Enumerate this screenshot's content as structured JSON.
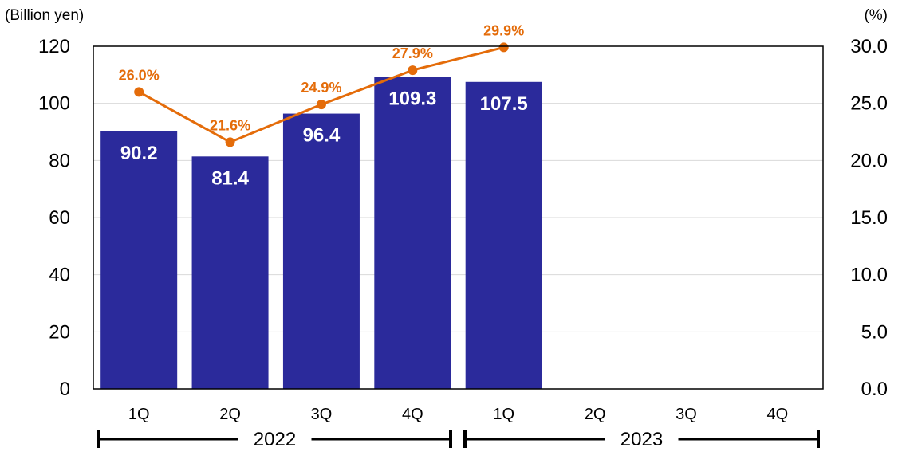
{
  "chart_data": {
    "type": "bar",
    "categories": [
      "1Q",
      "2Q",
      "3Q",
      "4Q",
      "1Q",
      "2Q",
      "3Q",
      "4Q"
    ],
    "groups": [
      {
        "label": "2022",
        "span": [
          0,
          3
        ]
      },
      {
        "label": "2023",
        "span": [
          4,
          7
        ]
      }
    ],
    "series": [
      {
        "type": "bar",
        "axis": "left",
        "values": [
          90.2,
          81.4,
          96.4,
          109.3,
          107.5,
          null,
          null,
          null
        ],
        "labels": [
          "90.2",
          "81.4",
          "96.4",
          "109.3",
          "107.5",
          null,
          null,
          null
        ]
      },
      {
        "type": "line",
        "axis": "right",
        "values": [
          26.0,
          21.6,
          24.9,
          27.9,
          29.9,
          null,
          null,
          null
        ],
        "labels": [
          "26.0%",
          "21.6%",
          "24.9%",
          "27.9%",
          "29.9%",
          null,
          null,
          null
        ]
      }
    ],
    "yleft": {
      "unit": "(Billion yen)",
      "lim": [
        0,
        120
      ],
      "ticks": [
        "0",
        "20",
        "40",
        "60",
        "80",
        "100",
        "120"
      ]
    },
    "yright": {
      "unit": "(%)",
      "lim": [
        0,
        30
      ],
      "ticks": [
        "0.0",
        "5.0",
        "10.0",
        "15.0",
        "20.0",
        "25.0",
        "30.0"
      ]
    },
    "grid": true,
    "colors": {
      "bar": "#2b2a9b",
      "line": "#e46c0a",
      "grid": "#d9d9d9",
      "axis": "#000000"
    }
  }
}
